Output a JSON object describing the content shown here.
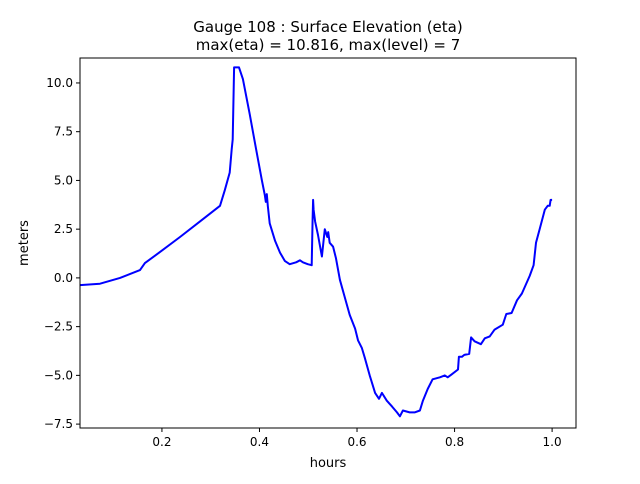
{
  "chart_data": {
    "type": "line",
    "title_line1": "Gauge 108 : Surface Elevation (eta)",
    "title_line2": "max(eta) =  10.816,    max(level) = 7",
    "xlabel": "hours",
    "ylabel": "meters",
    "xlim": [
      0.032,
      1.049
    ],
    "ylim": [
      -7.7,
      11.28
    ],
    "xticks": [
      0.2,
      0.4,
      0.6,
      0.8,
      1.0
    ],
    "xtick_labels": [
      "0.2",
      "0.4",
      "0.6",
      "0.8",
      "1.0"
    ],
    "yticks": [
      -7.5,
      -5.0,
      -2.5,
      0.0,
      2.5,
      5.0,
      7.5,
      10.0
    ],
    "ytick_labels": [
      "−7.5",
      "−5.0",
      "−2.5",
      "0.0",
      "2.5",
      "5.0",
      "7.5",
      "10.0"
    ],
    "grid": false,
    "series": [
      {
        "name": "eta",
        "color": "#0000ff",
        "x": [
          0.032,
          0.073,
          0.114,
          0.155,
          0.165,
          0.2,
          0.237,
          0.278,
          0.319,
          0.329,
          0.339,
          0.343,
          0.345,
          0.348,
          0.358,
          0.366,
          0.38,
          0.393,
          0.405,
          0.411,
          0.413,
          0.415,
          0.417,
          0.421,
          0.432,
          0.442,
          0.452,
          0.462,
          0.475,
          0.483,
          0.489,
          0.499,
          0.507,
          0.509,
          0.51,
          0.511,
          0.514,
          0.52,
          0.528,
          0.534,
          0.539,
          0.541,
          0.544,
          0.551,
          0.557,
          0.565,
          0.575,
          0.585,
          0.596,
          0.602,
          0.61,
          0.616,
          0.626,
          0.637,
          0.645,
          0.651,
          0.661,
          0.672,
          0.682,
          0.688,
          0.694,
          0.708,
          0.718,
          0.729,
          0.735,
          0.745,
          0.755,
          0.77,
          0.78,
          0.786,
          0.794,
          0.807,
          0.809,
          0.815,
          0.82,
          0.83,
          0.834,
          0.841,
          0.854,
          0.862,
          0.872,
          0.882,
          0.899,
          0.906,
          0.917,
          0.928,
          0.938,
          0.954,
          0.962,
          0.967,
          0.975,
          0.985,
          0.991,
          0.995,
          0.997,
          1.0
        ],
        "y": [
          -0.37,
          -0.3,
          0.0,
          0.4,
          0.76,
          1.4,
          2.1,
          2.9,
          3.7,
          4.5,
          5.4,
          6.6,
          7.1,
          10.8,
          10.8,
          10.2,
          8.4,
          6.6,
          5.0,
          4.25,
          3.9,
          4.3,
          3.7,
          2.8,
          1.9,
          1.3,
          0.87,
          0.7,
          0.8,
          0.9,
          0.8,
          0.7,
          0.65,
          3.0,
          4.0,
          3.5,
          2.9,
          2.2,
          1.1,
          2.5,
          2.1,
          2.35,
          1.8,
          1.6,
          1.0,
          -0.1,
          -1.0,
          -1.9,
          -2.6,
          -3.2,
          -3.6,
          -4.1,
          -5.0,
          -5.9,
          -6.2,
          -5.9,
          -6.3,
          -6.6,
          -6.9,
          -7.1,
          -6.8,
          -6.9,
          -6.9,
          -6.8,
          -6.3,
          -5.7,
          -5.2,
          -5.1,
          -5.0,
          -5.1,
          -4.95,
          -4.7,
          -4.05,
          -4.05,
          -3.95,
          -3.9,
          -3.05,
          -3.25,
          -3.4,
          -3.1,
          -3.0,
          -2.65,
          -2.4,
          -1.85,
          -1.8,
          -1.15,
          -0.8,
          0.1,
          0.65,
          1.8,
          2.55,
          3.5,
          3.7,
          3.7,
          4.0,
          4.0
        ]
      }
    ]
  }
}
